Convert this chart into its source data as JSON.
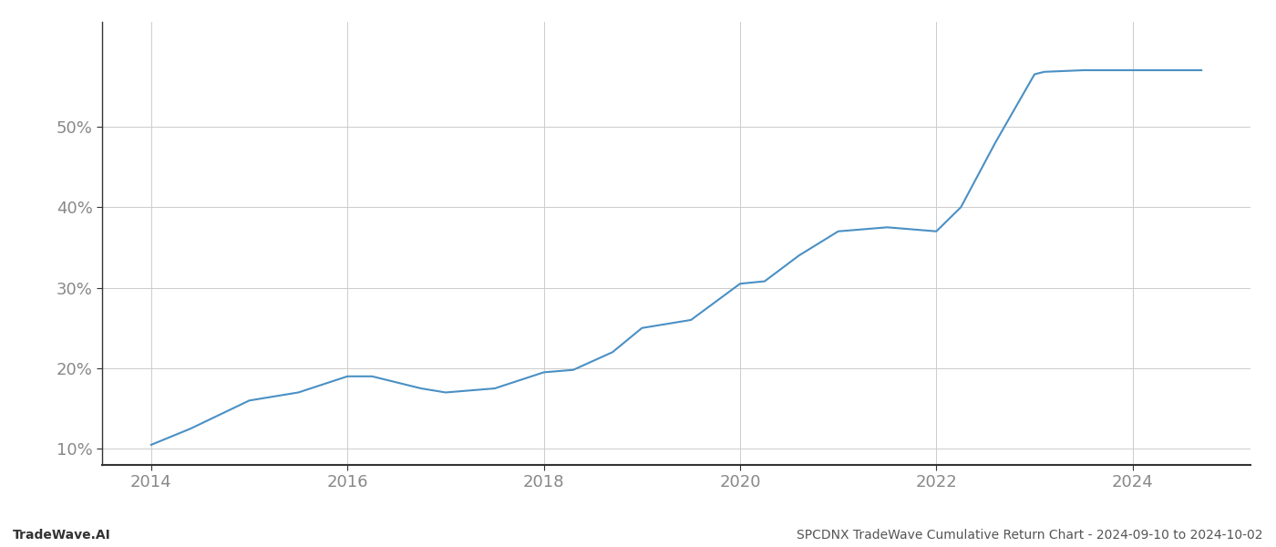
{
  "title": "SPCDNX TradeWave Cumulative Return Chart - 2024-09-10 to 2024-10-02",
  "watermark": "TradeWave.AI",
  "line_color": "#4a90c4",
  "background_color": "#ffffff",
  "grid_color": "#cccccc",
  "x_values": [
    2014.0,
    2014.4,
    2015.0,
    2015.5,
    2016.0,
    2016.25,
    2016.75,
    2017.0,
    2017.5,
    2018.0,
    2018.3,
    2018.7,
    2019.0,
    2019.5,
    2020.0,
    2020.25,
    2020.6,
    2021.0,
    2021.5,
    2022.0,
    2022.25,
    2022.6,
    2023.0,
    2023.1,
    2023.5,
    2024.0,
    2024.7
  ],
  "y_values": [
    10.5,
    12.5,
    16.0,
    17.0,
    19.0,
    19.0,
    17.5,
    17.0,
    17.5,
    19.5,
    19.8,
    22.0,
    25.0,
    26.0,
    30.5,
    30.8,
    34.0,
    37.0,
    37.5,
    37.0,
    40.0,
    48.0,
    56.5,
    56.8,
    57.0,
    57.0,
    57.0
  ],
  "xlim": [
    2013.5,
    2025.2
  ],
  "ylim": [
    8.0,
    63.0
  ],
  "yticks": [
    10,
    20,
    30,
    40,
    50
  ],
  "xticks": [
    2014,
    2016,
    2018,
    2020,
    2022,
    2024
  ],
  "line_width": 1.5,
  "title_fontsize": 10,
  "watermark_fontsize": 10,
  "tick_label_color": "#888888",
  "tick_fontsize": 13,
  "spine_color": "#333333"
}
